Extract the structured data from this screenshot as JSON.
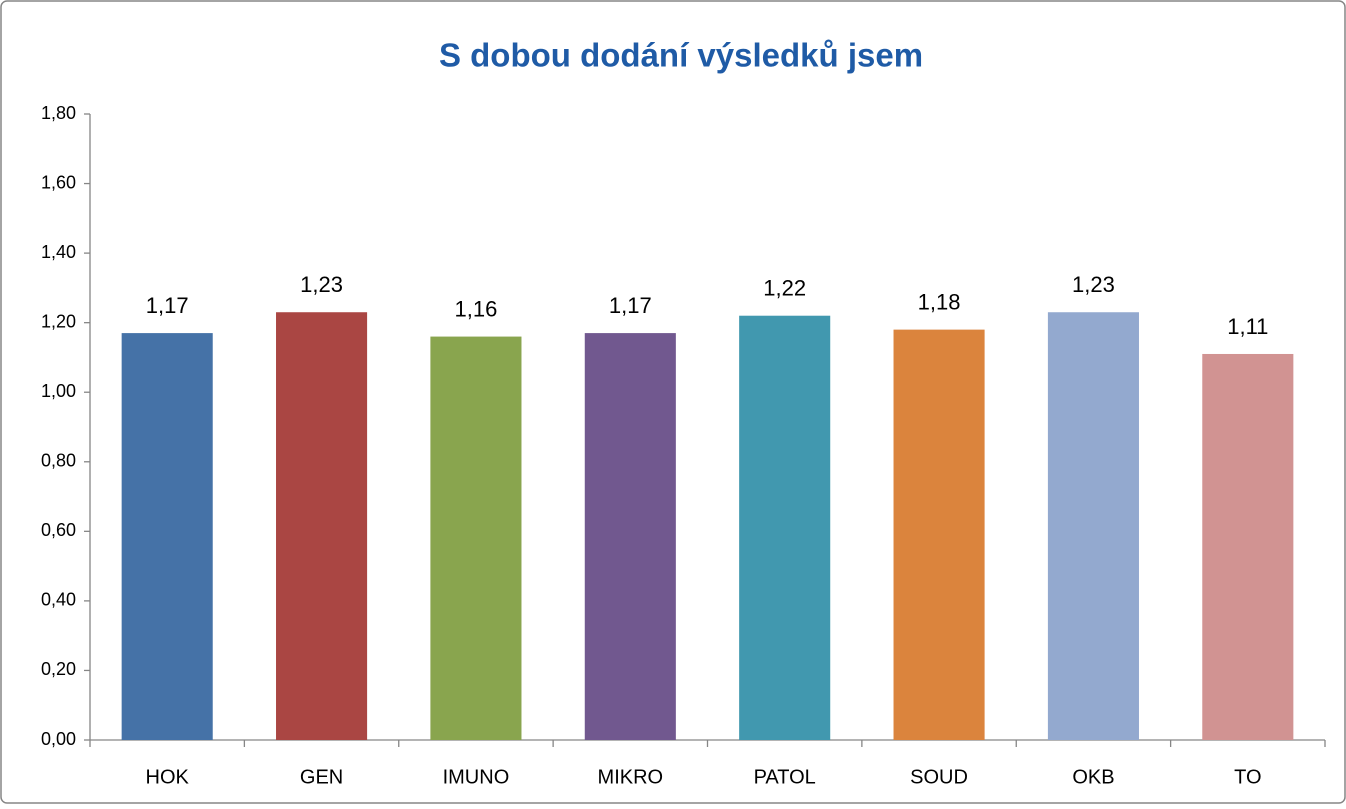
{
  "chart_data": {
    "type": "bar",
    "title": "S dobou dodání výsledků jsem",
    "categories": [
      "HOK",
      "GEN",
      "IMUNO",
      "MIKRO",
      "PATOL",
      "SOUD",
      "OKB",
      "TO"
    ],
    "values": [
      1.17,
      1.23,
      1.16,
      1.17,
      1.22,
      1.18,
      1.23,
      1.11
    ],
    "value_labels": [
      "1,17",
      "1,23",
      "1,16",
      "1,17",
      "1,22",
      "1,18",
      "1,23",
      "1,11"
    ],
    "colors": [
      "#4572a7",
      "#aa4643",
      "#89a54e",
      "#71588f",
      "#4198af",
      "#db843d",
      "#93a9cf",
      "#d19392"
    ],
    "ylim": [
      0,
      1.8
    ],
    "yticks": [
      {
        "value": 0,
        "label": "0,00"
      },
      {
        "value": 0.2,
        "label": "0,20"
      },
      {
        "value": 0.4,
        "label": "0,40"
      },
      {
        "value": 0.6,
        "label": "0,60"
      },
      {
        "value": 0.8,
        "label": "0,80"
      },
      {
        "value": 1.0,
        "label": "1,00"
      },
      {
        "value": 1.2,
        "label": "1,20"
      },
      {
        "value": 1.4,
        "label": "1,40"
      },
      {
        "value": 1.6,
        "label": "1,60"
      },
      {
        "value": 1.8,
        "label": "1,80"
      }
    ],
    "grid": false
  }
}
